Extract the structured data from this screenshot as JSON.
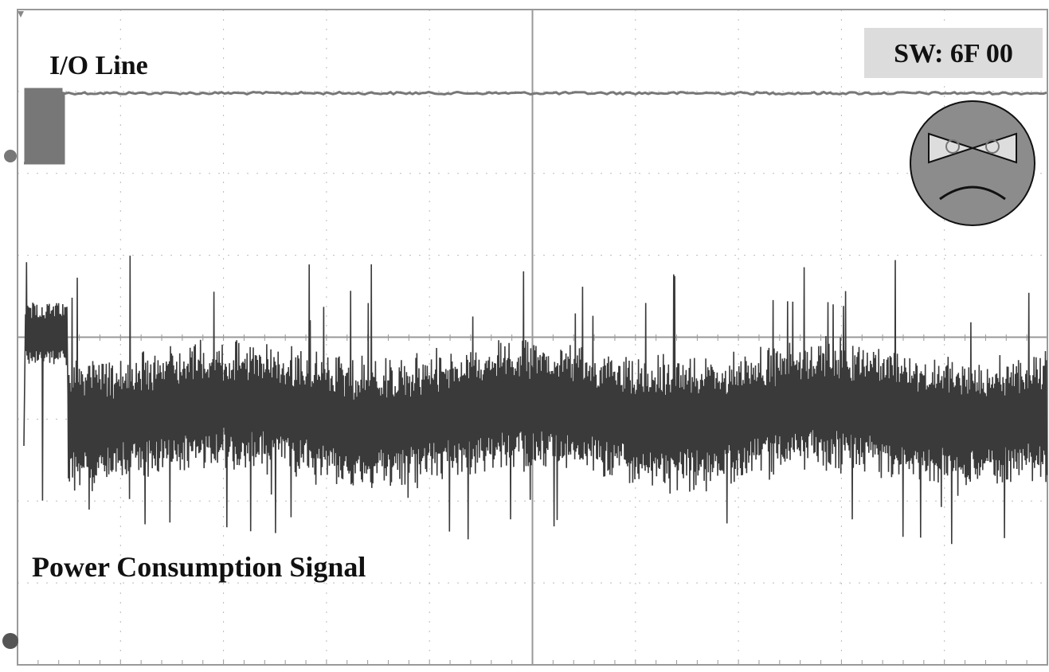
{
  "io_label": "I/O Line",
  "status_label": "SW: 6F 00",
  "signal_label": "Power Consumption Signal"
}
